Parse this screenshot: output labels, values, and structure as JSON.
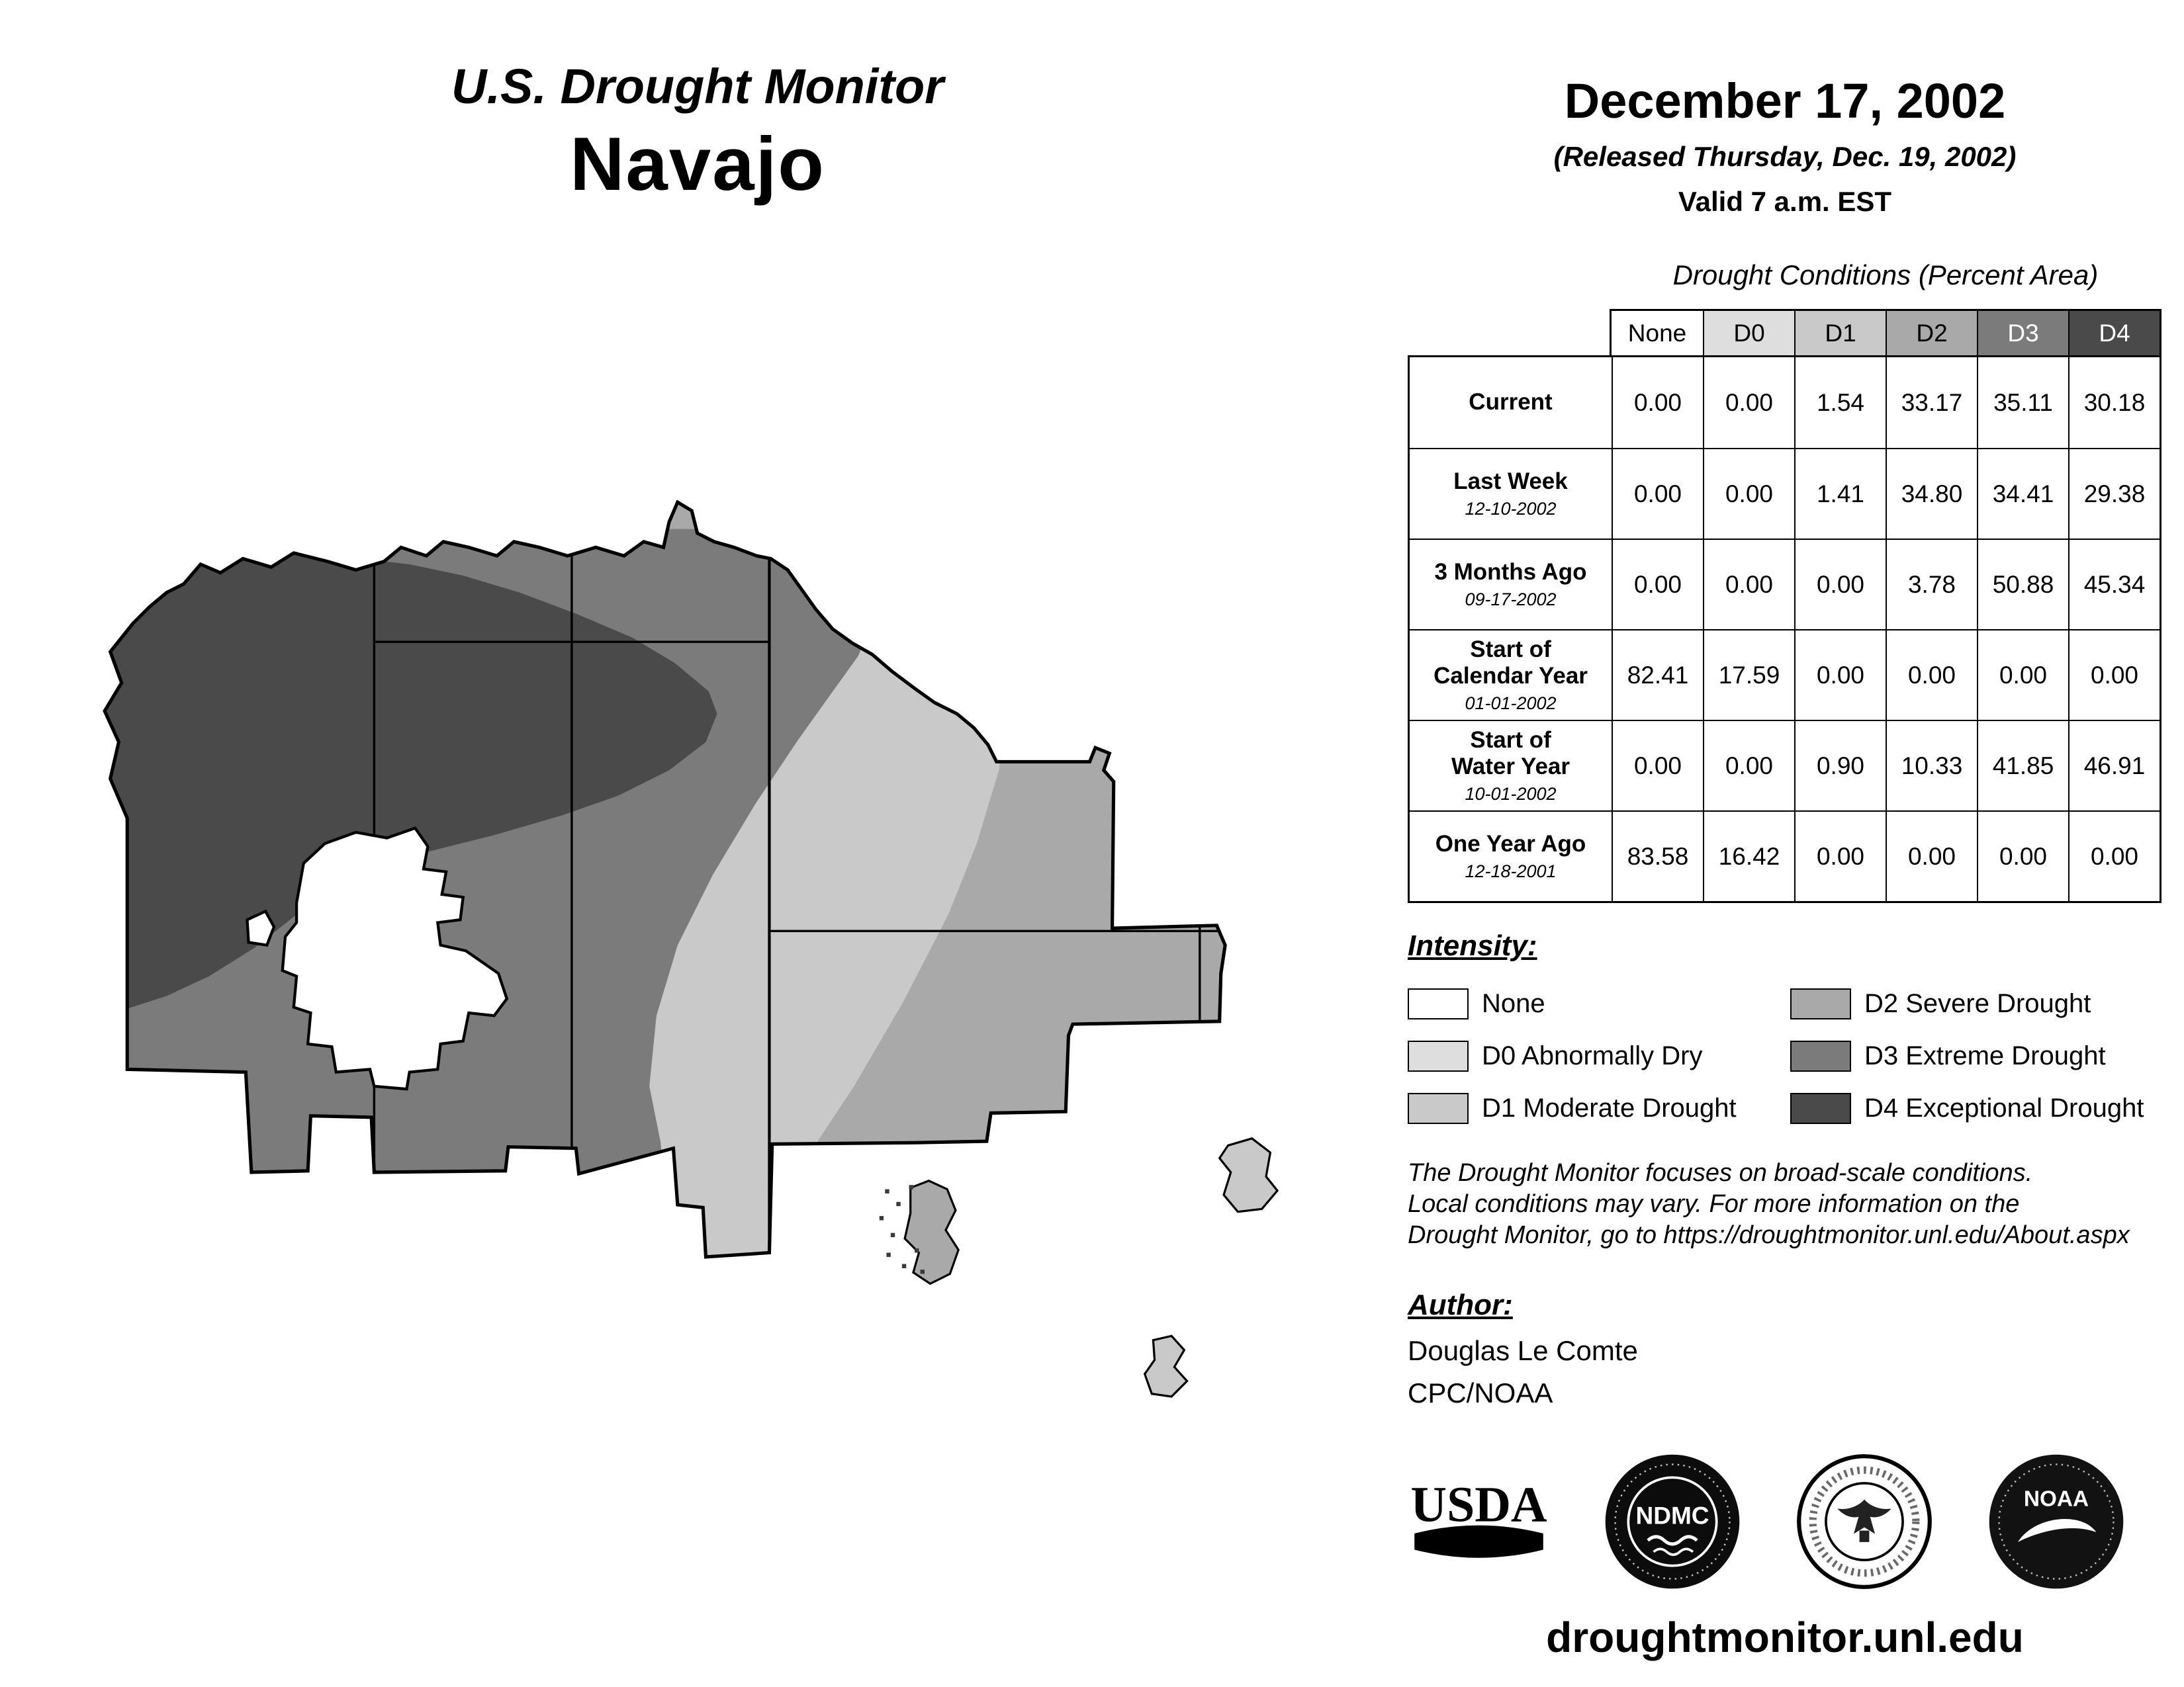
{
  "header": {
    "brand_title": "U.S. Drought Monitor",
    "region": "Navajo",
    "date": "December 17, 2002",
    "released": "(Released Thursday, Dec. 19, 2002)",
    "valid": "Valid 7 a.m. EST"
  },
  "table": {
    "title": "Drought Conditions (Percent Area)",
    "columns": [
      {
        "label": "None",
        "bg": "#ffffff",
        "fg": "#000000"
      },
      {
        "label": "D0",
        "bg": "#dedede",
        "fg": "#000000"
      },
      {
        "label": "D1",
        "bg": "#c9c9c9",
        "fg": "#000000"
      },
      {
        "label": "D2",
        "bg": "#a9a9a9",
        "fg": "#000000"
      },
      {
        "label": "D3",
        "bg": "#7b7b7b",
        "fg": "#ffffff"
      },
      {
        "label": "D4",
        "bg": "#4a4a4a",
        "fg": "#ffffff"
      }
    ],
    "rows": [
      {
        "label": "Current",
        "sublabel": "",
        "values": [
          "0.00",
          "0.00",
          "1.54",
          "33.17",
          "35.11",
          "30.18"
        ]
      },
      {
        "label": "Last Week",
        "sublabel": "12-10-2002",
        "values": [
          "0.00",
          "0.00",
          "1.41",
          "34.80",
          "34.41",
          "29.38"
        ]
      },
      {
        "label": "3 Months Ago",
        "sublabel": "09-17-2002",
        "values": [
          "0.00",
          "0.00",
          "0.00",
          "3.78",
          "50.88",
          "45.34"
        ]
      },
      {
        "label": "Start of\nCalendar Year",
        "sublabel": "01-01-2002",
        "values": [
          "82.41",
          "17.59",
          "0.00",
          "0.00",
          "0.00",
          "0.00"
        ]
      },
      {
        "label": "Start of\nWater Year",
        "sublabel": "10-01-2002",
        "values": [
          "0.00",
          "0.00",
          "0.90",
          "10.33",
          "41.85",
          "46.91"
        ]
      },
      {
        "label": "One Year Ago",
        "sublabel": "12-18-2001",
        "values": [
          "83.58",
          "16.42",
          "0.00",
          "0.00",
          "0.00",
          "0.00"
        ]
      }
    ]
  },
  "legend": {
    "title": "Intensity:",
    "items": [
      {
        "label": "None",
        "color": "#ffffff"
      },
      {
        "label": "D0 Abnormally Dry",
        "color": "#dedede"
      },
      {
        "label": "D1 Moderate Drought",
        "color": "#c9c9c9"
      },
      {
        "label": "D2 Severe Drought",
        "color": "#a9a9a9"
      },
      {
        "label": "D3 Extreme Drought",
        "color": "#7b7b7b"
      },
      {
        "label": "D4 Exceptional Drought",
        "color": "#4a4a4a"
      }
    ]
  },
  "notes": {
    "lines": [
      "The Drought Monitor focuses on broad-scale conditions.",
      "Local conditions may vary. For more information on the",
      "Drought Monitor, go to https://droughtmonitor.unl.edu/About.aspx"
    ]
  },
  "author": {
    "heading": "Author:",
    "name": "Douglas Le Comte",
    "org": "CPC/NOAA"
  },
  "logos": {
    "usda": "USDA",
    "ndmc": "NDMC",
    "noaa": "NOAA"
  },
  "footer": {
    "url": "droughtmonitor.unl.edu"
  }
}
